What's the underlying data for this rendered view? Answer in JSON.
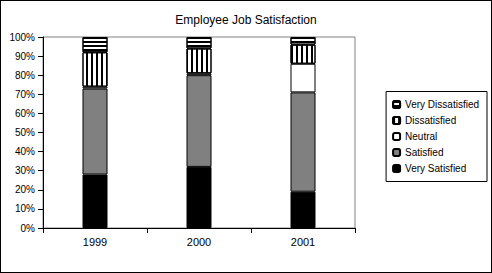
{
  "chart_data": {
    "type": "bar",
    "title": "Employee Job Satisfaction",
    "stacked": true,
    "grid": false,
    "legend": "right",
    "categories": [
      "1999",
      "2000",
      "2001"
    ],
    "series": [
      {
        "name": "Very Satisfied",
        "color": "#000000",
        "values": [
          28,
          32,
          19
        ]
      },
      {
        "name": "Satisfied",
        "color": "#808080",
        "values": [
          45,
          48,
          52
        ]
      },
      {
        "name": "Neutral",
        "color": "#ffffff",
        "values": [
          1,
          1,
          15
        ]
      },
      {
        "name": "Dissatisfied",
        "color": "#ffffff",
        "values": [
          18,
          13,
          10
        ]
      },
      {
        "name": "Very Dissatisfied",
        "color": "#ffffff",
        "values": [
          8,
          6,
          4
        ]
      }
    ],
    "ylim": [
      0,
      100
    ],
    "yticks": [
      {
        "value": 0,
        "label": "0%"
      },
      {
        "value": 10,
        "label": "10%"
      },
      {
        "value": 20,
        "label": "20%"
      },
      {
        "value": 30,
        "label": "30%"
      },
      {
        "value": 40,
        "label": "40%"
      },
      {
        "value": 50,
        "label": "50%"
      },
      {
        "value": 60,
        "label": "60%"
      },
      {
        "value": 70,
        "label": "70%"
      },
      {
        "value": 80,
        "label": "80%"
      },
      {
        "value": 90,
        "label": "90%"
      },
      {
        "value": 100,
        "label": "100%"
      }
    ]
  }
}
